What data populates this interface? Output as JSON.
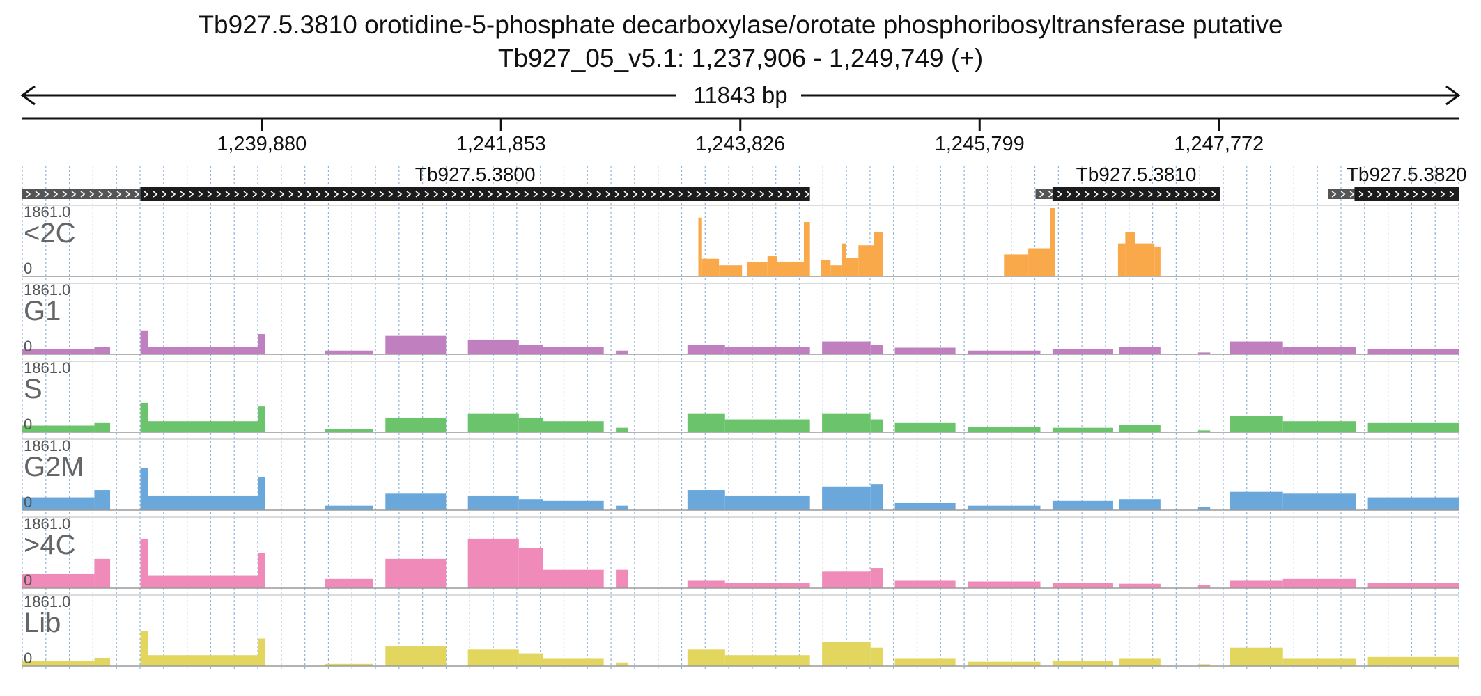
{
  "title": "Tb927.5.3810  orotidine-5-phosphate decarboxylase/orotate phosphoribosyltransferase  putative",
  "subtitle": "Tb927_05_v5.1: 1,237,906 - 1,249,749 (+)",
  "span_label": "11843 bp",
  "chart_data": {
    "type": "area",
    "region": {
      "chrom": "Tb927_05_v5.1",
      "start": 1237906,
      "end": 1249749,
      "strand": "+"
    },
    "ticks": [
      1239880,
      1241853,
      1243826,
      1245799,
      1247772
    ],
    "tick_labels": [
      "1,239,880",
      "1,241,853",
      "1,243,826",
      "1,245,799",
      "1,247,772"
    ],
    "genes": [
      {
        "name": "Tb927.5.3800",
        "utr_start": 1237906,
        "start": 1238880,
        "end": 1244400
      },
      {
        "name": "Tb927.5.3810",
        "utr_start": 1246260,
        "start": 1246400,
        "end": 1247780
      },
      {
        "name": "Tb927.5.3820",
        "utr_start": 1248670,
        "start": 1248890,
        "end": 1249749
      }
    ],
    "ymax_label": "1861.0",
    "ymin_label": "0",
    "tracks": [
      {
        "name": "<2C",
        "color": "#f9a94a",
        "segments": [
          [
            1243480,
            1243510,
            1600
          ],
          [
            1243510,
            1243650,
            480
          ],
          [
            1243650,
            1243840,
            300
          ],
          [
            1243880,
            1244050,
            380
          ],
          [
            1244050,
            1244130,
            550
          ],
          [
            1244130,
            1244350,
            400
          ],
          [
            1244350,
            1244400,
            1480
          ],
          [
            1244400,
            1244400,
            0
          ],
          [
            1244490,
            1244570,
            450
          ],
          [
            1244570,
            1244660,
            300
          ],
          [
            1244660,
            1244700,
            900
          ],
          [
            1244700,
            1244800,
            500
          ],
          [
            1244800,
            1244930,
            850
          ],
          [
            1244930,
            1245000,
            1200
          ],
          [
            1246000,
            1246200,
            600
          ],
          [
            1246200,
            1246380,
            750
          ],
          [
            1246380,
            1246420,
            1861
          ],
          [
            1246940,
            1247000,
            900
          ],
          [
            1247000,
            1247080,
            1200
          ],
          [
            1247080,
            1247240,
            900
          ],
          [
            1247240,
            1247290,
            800
          ]
        ]
      },
      {
        "name": "G1",
        "color": "#c07fbf",
        "segments": [
          [
            1237906,
            1238500,
            150
          ],
          [
            1238500,
            1238630,
            200
          ],
          [
            1238880,
            1238940,
            650
          ],
          [
            1238940,
            1239850,
            200
          ],
          [
            1239850,
            1239910,
            550
          ],
          [
            1240400,
            1240800,
            100
          ],
          [
            1240900,
            1241400,
            500
          ],
          [
            1241580,
            1242000,
            400
          ],
          [
            1242000,
            1242200,
            250
          ],
          [
            1242200,
            1242700,
            200
          ],
          [
            1242800,
            1242900,
            100
          ],
          [
            1243390,
            1243700,
            250
          ],
          [
            1243700,
            1244400,
            200
          ],
          [
            1244500,
            1244900,
            350
          ],
          [
            1244900,
            1245000,
            250
          ],
          [
            1245100,
            1245600,
            180
          ],
          [
            1245700,
            1246300,
            100
          ],
          [
            1246400,
            1246900,
            150
          ],
          [
            1246950,
            1247290,
            200
          ],
          [
            1247600,
            1247700,
            50
          ],
          [
            1247860,
            1248300,
            350
          ],
          [
            1248300,
            1248900,
            200
          ],
          [
            1249000,
            1249749,
            150
          ]
        ]
      },
      {
        "name": "S",
        "color": "#6bc46b",
        "segments": [
          [
            1237906,
            1238500,
            180
          ],
          [
            1238500,
            1238630,
            250
          ],
          [
            1238880,
            1238940,
            800
          ],
          [
            1238940,
            1239850,
            300
          ],
          [
            1239850,
            1239910,
            700
          ],
          [
            1240400,
            1240800,
            80
          ],
          [
            1240900,
            1241400,
            400
          ],
          [
            1241580,
            1242000,
            500
          ],
          [
            1242000,
            1242200,
            400
          ],
          [
            1242200,
            1242700,
            300
          ],
          [
            1242800,
            1242900,
            120
          ],
          [
            1243390,
            1243700,
            500
          ],
          [
            1243700,
            1244400,
            350
          ],
          [
            1244500,
            1244900,
            500
          ],
          [
            1244900,
            1245000,
            350
          ],
          [
            1245100,
            1245600,
            250
          ],
          [
            1245700,
            1246300,
            150
          ],
          [
            1246400,
            1246900,
            120
          ],
          [
            1246950,
            1247290,
            200
          ],
          [
            1247600,
            1247700,
            50
          ],
          [
            1247860,
            1248300,
            450
          ],
          [
            1248300,
            1248900,
            300
          ],
          [
            1249000,
            1249749,
            250
          ]
        ]
      },
      {
        "name": "G2M",
        "color": "#6aa8dc",
        "segments": [
          [
            1237906,
            1238500,
            350
          ],
          [
            1238500,
            1238630,
            550
          ],
          [
            1238880,
            1238940,
            1150
          ],
          [
            1238940,
            1239850,
            400
          ],
          [
            1239850,
            1239910,
            900
          ],
          [
            1240400,
            1240800,
            120
          ],
          [
            1240900,
            1241400,
            450
          ],
          [
            1241580,
            1242000,
            400
          ],
          [
            1242000,
            1242200,
            300
          ],
          [
            1242200,
            1242700,
            250
          ],
          [
            1242800,
            1242900,
            120
          ],
          [
            1243390,
            1243700,
            550
          ],
          [
            1243700,
            1244400,
            400
          ],
          [
            1244500,
            1244900,
            650
          ],
          [
            1244900,
            1245000,
            700
          ],
          [
            1245100,
            1245600,
            200
          ],
          [
            1245700,
            1246300,
            120
          ],
          [
            1246400,
            1246900,
            250
          ],
          [
            1246950,
            1247290,
            300
          ],
          [
            1247600,
            1247700,
            80
          ],
          [
            1247860,
            1248300,
            500
          ],
          [
            1248300,
            1248900,
            450
          ],
          [
            1249000,
            1249749,
            350
          ]
        ]
      },
      {
        "name": ">4C",
        "color": "#f08bb9",
        "segments": [
          [
            1237906,
            1238500,
            400
          ],
          [
            1238500,
            1238630,
            800
          ],
          [
            1238880,
            1238940,
            1350
          ],
          [
            1238940,
            1239850,
            350
          ],
          [
            1239850,
            1239910,
            950
          ],
          [
            1240400,
            1240800,
            250
          ],
          [
            1240900,
            1241400,
            800
          ],
          [
            1241580,
            1242000,
            1350
          ],
          [
            1242000,
            1242200,
            1100
          ],
          [
            1242200,
            1242700,
            500
          ],
          [
            1242800,
            1242900,
            500
          ],
          [
            1243390,
            1243700,
            200
          ],
          [
            1243700,
            1244400,
            150
          ],
          [
            1244500,
            1244900,
            450
          ],
          [
            1244900,
            1245000,
            550
          ],
          [
            1245100,
            1245600,
            200
          ],
          [
            1245700,
            1246300,
            180
          ],
          [
            1246400,
            1246900,
            150
          ],
          [
            1246950,
            1247290,
            120
          ],
          [
            1247600,
            1247700,
            80
          ],
          [
            1247860,
            1248300,
            200
          ],
          [
            1248300,
            1248900,
            250
          ],
          [
            1249000,
            1249749,
            150
          ]
        ]
      },
      {
        "name": "Lib",
        "color": "#e3d65f",
        "segments": [
          [
            1237906,
            1238500,
            150
          ],
          [
            1238500,
            1238630,
            220
          ],
          [
            1238880,
            1238940,
            950
          ],
          [
            1238940,
            1239850,
            300
          ],
          [
            1239850,
            1239910,
            750
          ],
          [
            1240400,
            1240800,
            60
          ],
          [
            1240900,
            1241400,
            550
          ],
          [
            1241580,
            1242000,
            450
          ],
          [
            1242000,
            1242200,
            350
          ],
          [
            1242200,
            1242700,
            200
          ],
          [
            1242800,
            1242900,
            100
          ],
          [
            1243390,
            1243700,
            450
          ],
          [
            1243700,
            1244400,
            300
          ],
          [
            1244500,
            1244900,
            650
          ],
          [
            1244900,
            1245000,
            500
          ],
          [
            1245100,
            1245600,
            200
          ],
          [
            1245700,
            1246300,
            120
          ],
          [
            1246400,
            1246900,
            150
          ],
          [
            1246950,
            1247290,
            200
          ],
          [
            1247600,
            1247700,
            50
          ],
          [
            1247860,
            1248300,
            500
          ],
          [
            1248300,
            1248900,
            200
          ],
          [
            1249000,
            1249749,
            250
          ]
        ]
      }
    ]
  }
}
